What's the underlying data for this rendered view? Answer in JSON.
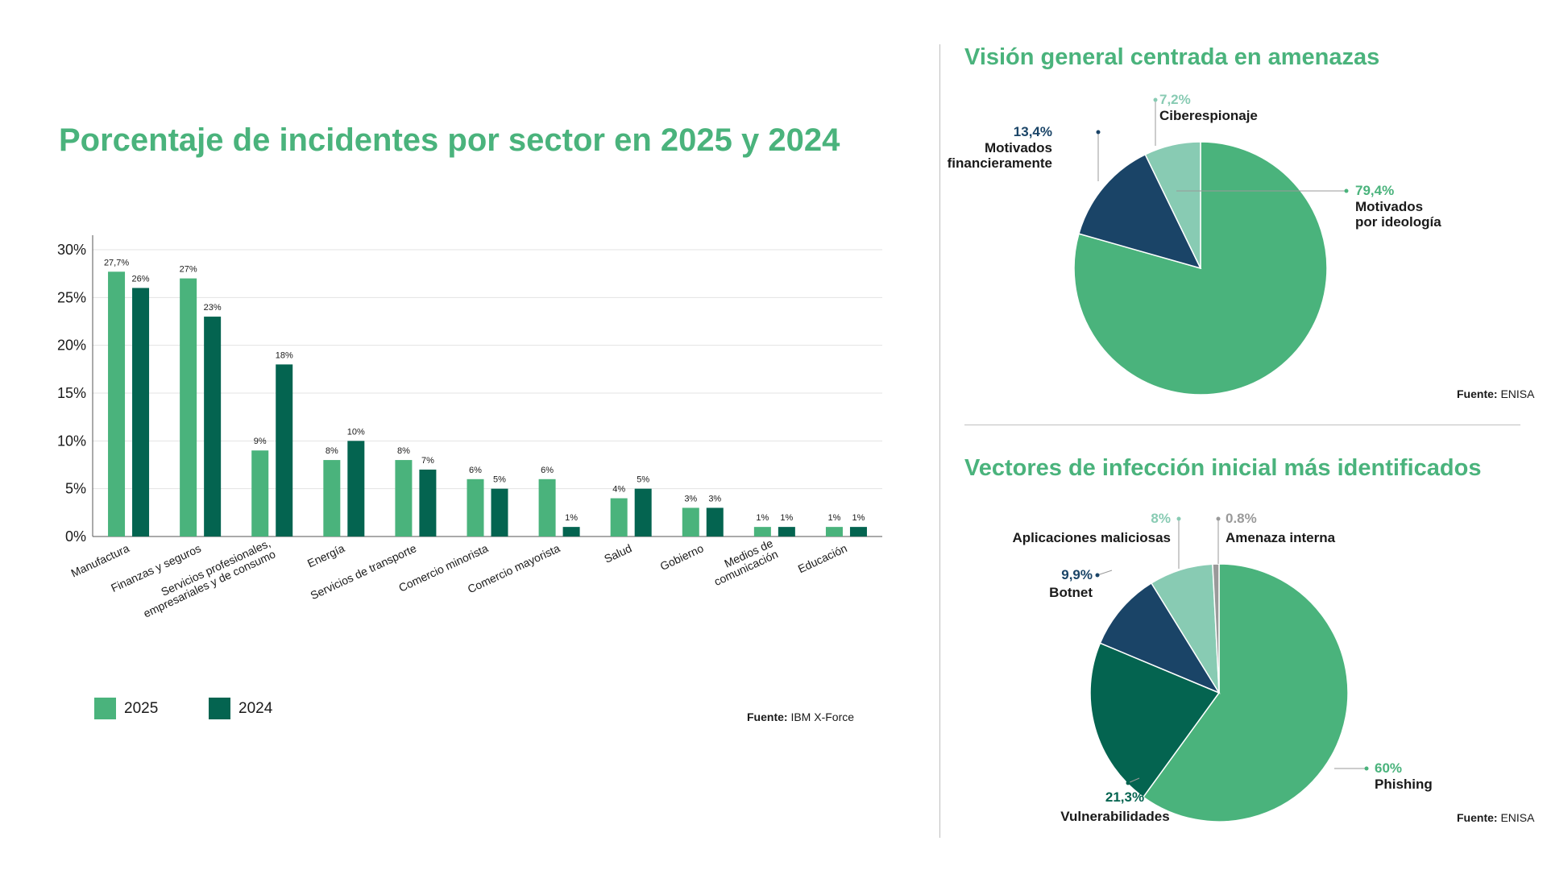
{
  "bar_section": {
    "title": "Porcentaje de incidentes por sector en 2025 y 2024",
    "legend": [
      {
        "label": "2025",
        "color": "#4ab37c"
      },
      {
        "label": "2024",
        "color": "#046450"
      }
    ],
    "source_prefix": "Fuente:",
    "source_name": "IBM X-Force"
  },
  "pie1": {
    "title": "Visión general centrada en amenazas",
    "source_prefix": "Fuente:",
    "source_name": "ENISA"
  },
  "pie2": {
    "title": "Vectores de infección inicial más identificados",
    "source_prefix": "Fuente:",
    "source_name": "ENISA"
  },
  "chart_data": [
    {
      "type": "bar",
      "title": "Porcentaje de incidentes por sector en 2025 y 2024",
      "categories": [
        "Manufactura",
        "Finanzas y seguros",
        "Servicios profesionales, empresariales y de consumo",
        "Energía",
        "Servicios de transporte",
        "Comercio minorista",
        "Comercio mayorista",
        "Salud",
        "Gobierno",
        "Medios de comunicación",
        "Educación"
      ],
      "category_lines": [
        [
          "Manufactura"
        ],
        [
          "Finanzas y seguros"
        ],
        [
          "Servicios profesionales,",
          "empresariales y de consumo"
        ],
        [
          "Energía"
        ],
        [
          "Servicios de transporte"
        ],
        [
          "Comercio minorista"
        ],
        [
          "Comercio mayorista"
        ],
        [
          "Salud"
        ],
        [
          "Gobierno"
        ],
        [
          "Medios de",
          "comunicación"
        ],
        [
          "Educación"
        ]
      ],
      "series": [
        {
          "name": "2025",
          "color": "#4ab37c",
          "values": [
            27.7,
            27,
            9,
            8,
            8,
            6,
            6,
            4,
            3,
            1,
            1
          ],
          "labels": [
            "27,7%",
            "27%",
            "9%",
            "8%",
            "8%",
            "6%",
            "6%",
            "4%",
            "3%",
            "1%",
            "1%"
          ]
        },
        {
          "name": "2024",
          "color": "#046450",
          "values": [
            26,
            23,
            18,
            10,
            7,
            5,
            1,
            5,
            3,
            1,
            1
          ],
          "labels": [
            "26%",
            "23%",
            "18%",
            "10%",
            "7%",
            "5%",
            "1%",
            "5%",
            "3%",
            "1%",
            "1%"
          ]
        }
      ],
      "yticks": [
        "0%",
        "5%",
        "10%",
        "15%",
        "20%",
        "25%",
        "30%"
      ],
      "ylim": [
        0,
        30
      ],
      "grid": true,
      "legend_position": "bottom-left"
    },
    {
      "type": "pie",
      "title": "Visión general centrada en amenazas",
      "slices": [
        {
          "label_lines": [
            "Motivados",
            "por ideología"
          ],
          "value": 79.4,
          "pct_label": "79,4%",
          "color": "#4ab37c",
          "pct_color": "#4ab37c"
        },
        {
          "label_lines": [
            "Motivados",
            "financieramente"
          ],
          "value": 13.4,
          "pct_label": "13,4%",
          "color": "#1a4467",
          "pct_color": "#1a4467"
        },
        {
          "label_lines": [
            "Ciberespionaje"
          ],
          "value": 7.2,
          "pct_label": "7,2%",
          "color": "#88cbb3",
          "pct_color": "#88cbb3"
        }
      ]
    },
    {
      "type": "pie",
      "title": "Vectores de infección inicial más identificados",
      "slices": [
        {
          "label_lines": [
            "Phishing"
          ],
          "value": 60,
          "pct_label": "60%",
          "color": "#4ab37c",
          "pct_color": "#4ab37c"
        },
        {
          "label_lines": [
            "Vulnerabilidades"
          ],
          "value": 21.3,
          "pct_label": "21,3%",
          "color": "#046450",
          "pct_color": "#046450"
        },
        {
          "label_lines": [
            "Botnet"
          ],
          "value": 9.9,
          "pct_label": "9,9%",
          "color": "#1a4467",
          "pct_color": "#1a4467"
        },
        {
          "label_lines": [
            "Aplicaciones maliciosas"
          ],
          "value": 8,
          "pct_label": "8%",
          "color": "#88cbb3",
          "pct_color": "#88cbb3"
        },
        {
          "label_lines": [
            "Amenaza interna"
          ],
          "value": 0.8,
          "pct_label": "0.8%",
          "color": "#9a9a9a",
          "pct_color": "#9a9a9a"
        }
      ]
    }
  ]
}
